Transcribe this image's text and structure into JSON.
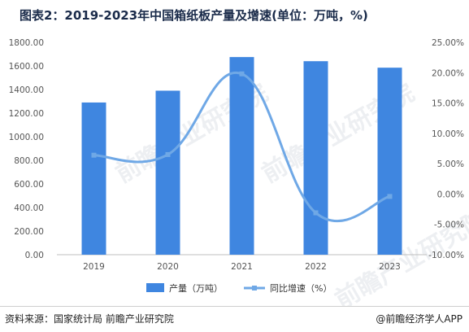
{
  "title": "图表2：2019-2023年中国箱纸板产量及增速(单位：万吨，%)",
  "watermark": "前瞻产业研究院",
  "footer": {
    "source": "资料来源：国家统计局 前瞻产业研究院",
    "brand": "@前瞻经济学人APP"
  },
  "colors": {
    "bar": "#3f86e0",
    "line": "#6fa8e6",
    "axis_text": "#555555",
    "grid": "#e6e6e6"
  },
  "chart_data": {
    "type": "bar",
    "categories": [
      "2019",
      "2020",
      "2021",
      "2022",
      "2023"
    ],
    "series": [
      {
        "name": "产量（万吨）",
        "type": "bar",
        "axis": "left",
        "values": [
          1290,
          1390,
          1675,
          1640,
          1585
        ]
      },
      {
        "name": "同比增速（%）",
        "type": "line",
        "axis": "right",
        "values": [
          6.4,
          6.5,
          19.8,
          -3.1,
          -0.4
        ]
      }
    ],
    "ylim": [
      0,
      1800
    ],
    "y2lim": [
      -10,
      25
    ],
    "yticks": [
      "0.00",
      "200.00",
      "400.00",
      "600.00",
      "800.00",
      "1000.00",
      "1200.00",
      "1400.00",
      "1600.00",
      "1800.00"
    ],
    "y2ticks": [
      "-10.00%",
      "-5.00%",
      "0.00%",
      "5.00%",
      "10.00%",
      "15.00%",
      "20.00%",
      "25.00%"
    ],
    "legend": "bottom-center",
    "grid": false
  }
}
